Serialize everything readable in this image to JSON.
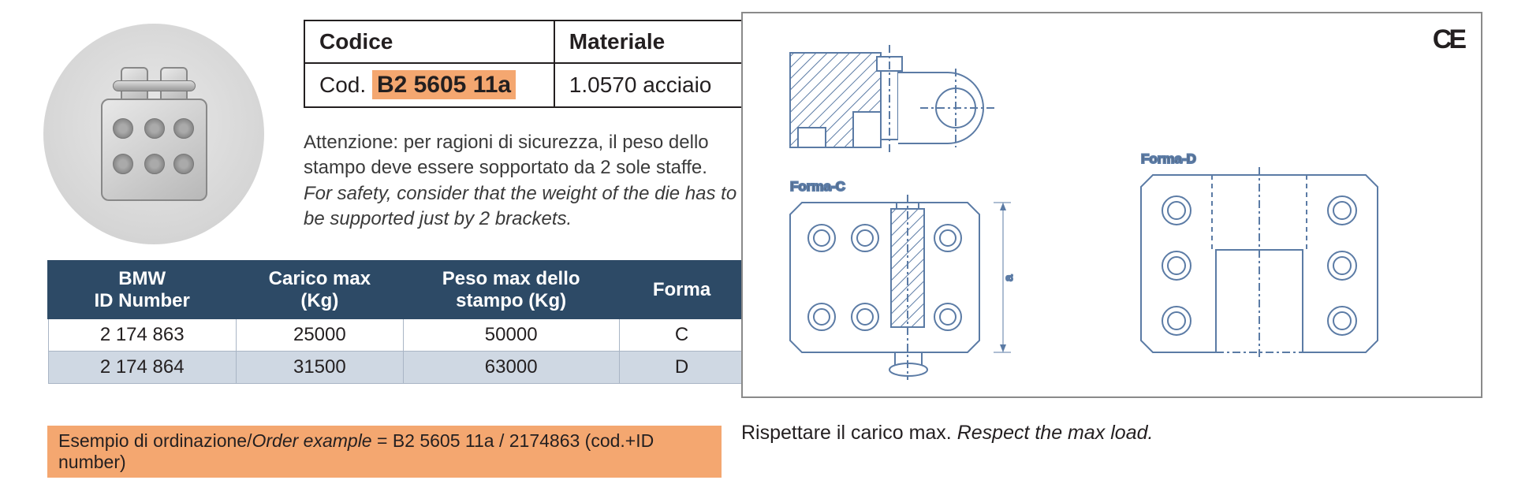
{
  "code_table": {
    "header_code": "Codice",
    "header_material": "Materiale",
    "code_prefix": "Cod.",
    "code_value": "B2 5605 11a",
    "material_value": "1.0570 acciaio"
  },
  "warning": {
    "it": "Attenzione: per ragioni di sicurezza, il peso dello stampo deve essere sopportato da 2 sole staffe.",
    "en": "For safety, consider that the weight of the die has to be supported just by 2 brackets."
  },
  "data_table": {
    "headers": {
      "id": "BMW\nID Number",
      "load": "Carico max\n(Kg)",
      "weight": "Peso max dello\nstampo (Kg)",
      "form": "Forma"
    },
    "col_widths": [
      "27%",
      "24%",
      "31%",
      "18%"
    ],
    "header_bg": "#2d4a66",
    "header_fg": "#ffffff",
    "row_odd_bg": "#ffffff",
    "row_even_bg": "#cfd8e3",
    "border_color": "#a9b5c5",
    "rows": [
      {
        "id": "2 174 863",
        "load": "25000",
        "weight": "50000",
        "form": "C"
      },
      {
        "id": "2 174 864",
        "load": "31500",
        "weight": "63000",
        "form": "D"
      }
    ]
  },
  "order_example": {
    "label_it": "Esempio di ordinazione",
    "label_en": "Order example",
    "value": "B2 5605 11a / 2174863 (cod.+ID number)"
  },
  "drawing": {
    "ce_mark": "CE",
    "forma_c_label": "Forma-C",
    "forma_d_label": "Forma-D",
    "dim_label": "a",
    "stroke_color": "#5b7ba5",
    "hatch_color": "#5b7ba5"
  },
  "respect": {
    "it": "Rispettare il carico max.",
    "en": "Respect the max load."
  },
  "colors": {
    "highlight_bg": "#f4a770",
    "text": "#231f20",
    "table_header_bg": "#2d4a66"
  }
}
